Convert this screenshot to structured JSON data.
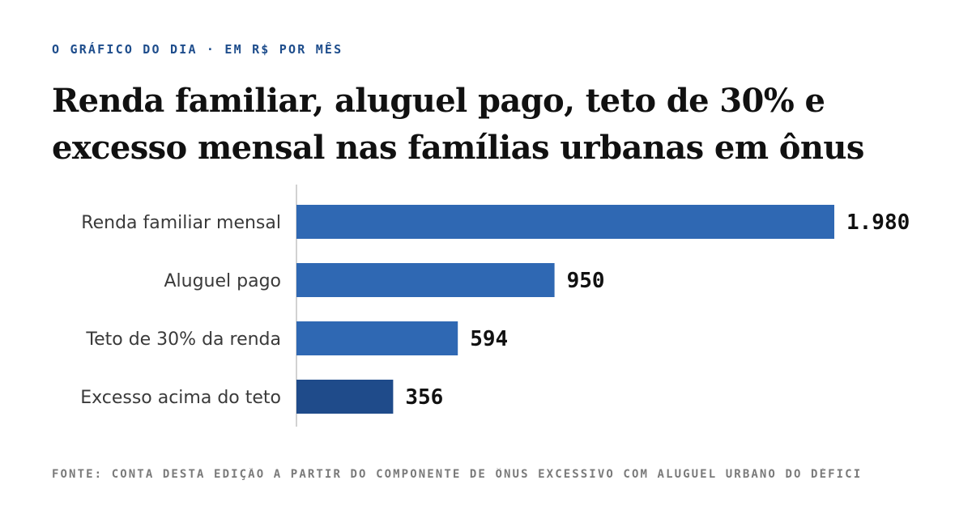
{
  "kicker": "O GRÁFICO DO DIA · EM R$ POR MÊS",
  "title": "Renda familiar, aluguel pago, teto de 30% e excesso mensal nas famílias urbanas em ônus",
  "source": "FONTE: CONTA DESTA EDIÇÃO A PARTIR DO COMPONENTE DE ÔNUS EXCESSIVO COM ALUGUEL URBANO DO DÉFICI",
  "chart_data": {
    "type": "bar",
    "orientation": "horizontal",
    "categories": [
      "Renda familiar mensal",
      "Aluguel pago",
      "Teto de 30% da renda",
      "Excesso acima do teto"
    ],
    "values": [
      1980,
      950,
      594,
      356
    ],
    "value_labels": [
      "1.980",
      "950",
      "594",
      "356"
    ],
    "xlim": [
      0,
      1980
    ],
    "grid": false,
    "colors": [
      "#2f68b3",
      "#2f68b3",
      "#2f68b3",
      "#1f4b8a"
    ]
  }
}
